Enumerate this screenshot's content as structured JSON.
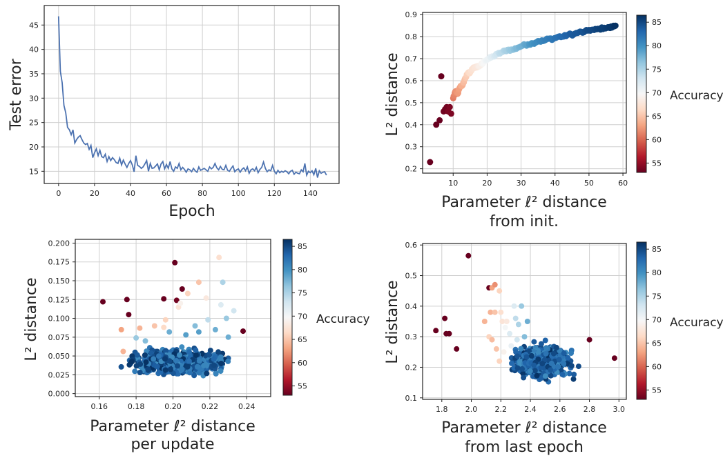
{
  "chart_data": [
    {
      "type": "line",
      "xlabel": "Epoch",
      "ylabel": "Test error",
      "xlim": [
        -8,
        156
      ],
      "ylim": [
        12.5,
        49
      ],
      "xticks": [
        0,
        20,
        40,
        60,
        80,
        100,
        120,
        140
      ],
      "yticks": [
        15,
        20,
        25,
        30,
        35,
        40,
        45
      ],
      "grid": true,
      "color": "#4c72b0",
      "x": [
        0,
        1,
        2,
        3,
        4,
        5,
        6,
        7,
        8,
        9,
        10,
        11,
        12,
        13,
        14,
        15,
        16,
        17,
        18,
        19,
        20,
        21,
        22,
        23,
        24,
        25,
        26,
        27,
        28,
        29,
        30,
        31,
        32,
        33,
        34,
        35,
        36,
        37,
        38,
        39,
        40,
        41,
        42,
        43,
        44,
        45,
        46,
        47,
        48,
        49,
        50,
        51,
        52,
        53,
        54,
        55,
        56,
        57,
        58,
        59,
        60,
        61,
        62,
        63,
        64,
        65,
        66,
        67,
        68,
        69,
        70,
        71,
        72,
        73,
        74,
        75,
        76,
        77,
        78,
        79,
        80,
        81,
        82,
        83,
        84,
        85,
        86,
        87,
        88,
        89,
        90,
        91,
        92,
        93,
        94,
        95,
        96,
        97,
        98,
        99,
        100,
        101,
        102,
        103,
        104,
        105,
        106,
        107,
        108,
        109,
        110,
        111,
        112,
        113,
        114,
        115,
        116,
        117,
        118,
        119,
        120,
        121,
        122,
        123,
        124,
        125,
        126,
        127,
        128,
        129,
        130,
        131,
        132,
        133,
        134,
        135,
        136,
        137,
        138,
        139,
        140,
        141,
        142,
        143,
        144,
        145,
        146,
        147,
        148,
        149
      ],
      "y": [
        46.8,
        35.5,
        33.2,
        28.5,
        27.0,
        24.0,
        23.5,
        22.5,
        23.5,
        20.8,
        21.5,
        22.0,
        22.3,
        21.5,
        20.8,
        20.5,
        20.7,
        19.5,
        20.3,
        17.8,
        18.8,
        19.6,
        18.2,
        19.3,
        18.0,
        17.8,
        18.5,
        17.0,
        18.0,
        17.2,
        17.8,
        17.4,
        16.8,
        16.6,
        17.7,
        16.3,
        17.3,
        16.5,
        15.8,
        16.6,
        17.2,
        16.3,
        14.9,
        18.2,
        16.2,
        16.0,
        15.6,
        15.9,
        16.5,
        17.2,
        15.0,
        16.6,
        15.6,
        15.7,
        16.1,
        16.5,
        15.3,
        16.5,
        17.0,
        15.5,
        16.4,
        15.6,
        17.0,
        15.5,
        15.0,
        15.9,
        15.6,
        16.6,
        15.3,
        15.8,
        15.4,
        14.8,
        15.5,
        15.3,
        14.9,
        15.6,
        15.1,
        14.8,
        15.9,
        15.2,
        15.4,
        15.6,
        15.3,
        15.0,
        15.9,
        15.5,
        15.8,
        16.6,
        15.7,
        15.3,
        16.0,
        15.4,
        15.3,
        16.2,
        15.2,
        15.0,
        15.6,
        16.1,
        14.9,
        15.3,
        15.5,
        14.8,
        15.4,
        15.7,
        15.1,
        15.9,
        14.6,
        15.3,
        15.5,
        15.1,
        15.8,
        14.7,
        15.4,
        15.8,
        16.9,
        15.6,
        14.9,
        15.3,
        15.1,
        16.2,
        15.0,
        14.5,
        15.2,
        14.7,
        15.0,
        14.8,
        15.1,
        14.9,
        14.5,
        15.0,
        15.2,
        14.4,
        14.8,
        14.6,
        14.5,
        15.3,
        14.9,
        16.6,
        14.2,
        15.0,
        14.7,
        15.1,
        14.3,
        15.6,
        13.7,
        15.1,
        14.6,
        14.8,
        14.9,
        14.2
      ]
    },
    {
      "type": "scatter",
      "xlabel": "Parameter ℓ² distance\nfrom init.",
      "ylabel": "L² distance",
      "xlim": [
        1,
        61
      ],
      "ylim": [
        0.18,
        0.91
      ],
      "xticks": [
        10,
        20,
        30,
        40,
        50,
        60
      ],
      "yticks": [
        0.2,
        0.3,
        0.4,
        0.5,
        0.6,
        0.7,
        0.8,
        0.9
      ],
      "grid": true,
      "colorbar": {
        "label": "Accuracy",
        "min": 53,
        "max": 86.5,
        "ticks": [
          55,
          60,
          65,
          70,
          75,
          80,
          85
        ],
        "cmap": "RdBu"
      },
      "points": [
        [
          3.2,
          0.23,
          53
        ],
        [
          5.0,
          0.4,
          53
        ],
        [
          6.0,
          0.42,
          53
        ],
        [
          6.5,
          0.62,
          53
        ],
        [
          7.2,
          0.46,
          53.5
        ],
        [
          7.6,
          0.47,
          53.5
        ],
        [
          8.1,
          0.48,
          53.5
        ],
        [
          8.5,
          0.46,
          54
        ],
        [
          9.0,
          0.48,
          54
        ],
        [
          9.4,
          0.45,
          54
        ],
        [
          10.0,
          0.52,
          61
        ],
        [
          10.6,
          0.55,
          62
        ],
        [
          11.3,
          0.54,
          62.5
        ],
        [
          12.0,
          0.57,
          63
        ],
        [
          12.8,
          0.58,
          64
        ],
        [
          13.5,
          0.61,
          65
        ],
        [
          14.2,
          0.63,
          66
        ],
        [
          15.1,
          0.64,
          67
        ],
        [
          16.0,
          0.66,
          67.5
        ],
        [
          17.0,
          0.66,
          68
        ],
        [
          18.1,
          0.67,
          69
        ],
        [
          19.2,
          0.69,
          70
        ],
        [
          20.5,
          0.7,
          71
        ],
        [
          21.8,
          0.71,
          72
        ],
        [
          23.0,
          0.72,
          73.5
        ],
        [
          24.5,
          0.73,
          74.5
        ],
        [
          26.0,
          0.74,
          75.5
        ],
        [
          27.5,
          0.74,
          76.5
        ],
        [
          29.0,
          0.75,
          77.5
        ],
        [
          30.5,
          0.76,
          78
        ],
        [
          32.0,
          0.765,
          79
        ],
        [
          33.5,
          0.77,
          80
        ],
        [
          35.0,
          0.78,
          80.5
        ],
        [
          36.5,
          0.78,
          81
        ],
        [
          38.0,
          0.79,
          81.5
        ],
        [
          39.5,
          0.79,
          82
        ],
        [
          41.0,
          0.8,
          82.5
        ],
        [
          42.5,
          0.8,
          83
        ],
        [
          44.0,
          0.81,
          83.5
        ],
        [
          45.5,
          0.81,
          84
        ],
        [
          47.0,
          0.82,
          84
        ],
        [
          48.5,
          0.82,
          84.5
        ],
        [
          50.0,
          0.83,
          85
        ],
        [
          51.5,
          0.83,
          85
        ],
        [
          53.0,
          0.835,
          85.5
        ],
        [
          54.5,
          0.84,
          85.5
        ],
        [
          56.0,
          0.84,
          86
        ],
        [
          57.0,
          0.845,
          86
        ],
        [
          57.8,
          0.85,
          86.5
        ]
      ]
    },
    {
      "type": "scatter",
      "xlabel": "Parameter ℓ² distance\nper update",
      "ylabel": "L² distance",
      "xlim": [
        0.147,
        0.253
      ],
      "ylim": [
        -0.004,
        0.205
      ],
      "xticks": [
        0.16,
        0.18,
        0.2,
        0.22,
        0.24
      ],
      "xtick_labels": [
        "0.16",
        "0.18",
        "0.20",
        "0.22",
        "0.24"
      ],
      "yticks": [
        0.0,
        0.025,
        0.05,
        0.075,
        0.1,
        0.125,
        0.15,
        0.175,
        0.2
      ],
      "ytick_labels": [
        "0.000",
        "0.025",
        "0.050",
        "0.075",
        "0.100",
        "0.125",
        "0.150",
        "0.175",
        "0.200"
      ],
      "grid": true,
      "colorbar": {
        "label": "Accuracy",
        "min": 53,
        "max": 86.5,
        "ticks": [
          55,
          60,
          65,
          70,
          75,
          80,
          85
        ],
        "cmap": "RdBu"
      },
      "points": [
        [
          0.162,
          0.122,
          53
        ],
        [
          0.175,
          0.125,
          53
        ],
        [
          0.176,
          0.105,
          53
        ],
        [
          0.201,
          0.174,
          53
        ],
        [
          0.195,
          0.126,
          53
        ],
        [
          0.205,
          0.139,
          53
        ],
        [
          0.202,
          0.124,
          53.5
        ],
        [
          0.238,
          0.083,
          53
        ],
        [
          0.172,
          0.085,
          63
        ],
        [
          0.182,
          0.087,
          64
        ],
        [
          0.196,
          0.098,
          66
        ],
        [
          0.208,
          0.133,
          66
        ],
        [
          0.214,
          0.148,
          65
        ],
        [
          0.225,
          0.181,
          67
        ],
        [
          0.203,
          0.115,
          67.5
        ],
        [
          0.218,
          0.127,
          68
        ],
        [
          0.19,
          0.09,
          65
        ],
        [
          0.195,
          0.088,
          66.5
        ],
        [
          0.173,
          0.056,
          64
        ],
        [
          0.204,
          0.12,
          69
        ],
        [
          0.226,
          0.118,
          72
        ],
        [
          0.233,
          0.11,
          73
        ],
        [
          0.219,
          0.098,
          74
        ],
        [
          0.227,
          0.148,
          75
        ],
        [
          0.229,
          0.1,
          76
        ],
        [
          0.212,
          0.09,
          77
        ],
        [
          0.18,
          0.074,
          76
        ],
        [
          0.185,
          0.07,
          77
        ],
        [
          0.223,
          0.085,
          78
        ],
        [
          0.214,
          0.082,
          79
        ],
        [
          0.198,
          0.082,
          78
        ],
        [
          0.207,
          0.078,
          79
        ],
        [
          0.23,
          0.075,
          78
        ]
      ],
      "dense_cloud": {
        "x_range": [
          0.17,
          0.235
        ],
        "y_range": [
          0.02,
          0.065
        ],
        "accuracy_range": [
          80,
          86.5
        ]
      }
    },
    {
      "type": "scatter",
      "xlabel": "Parameter ℓ² distance\nfrom last epoch",
      "ylabel": "L² distance",
      "xlim": [
        1.67,
        3.05
      ],
      "ylim": [
        0.095,
        0.605
      ],
      "xticks": [
        1.8,
        2.0,
        2.2,
        2.4,
        2.6,
        2.8,
        3.0
      ],
      "xtick_labels": [
        "1.8",
        "2.0",
        "2.2",
        "2.4",
        "2.6",
        "2.8",
        "3.0"
      ],
      "yticks": [
        0.1,
        0.2,
        0.3,
        0.4,
        0.5,
        0.6
      ],
      "ytick_labels": [
        "0.1",
        "0.2",
        "0.3",
        "0.4",
        "0.5",
        "0.6"
      ],
      "grid": true,
      "colorbar": {
        "label": "Accuracy",
        "min": 53,
        "max": 86.5,
        "ticks": [
          55,
          60,
          65,
          70,
          75,
          80,
          85
        ],
        "cmap": "RdBu"
      },
      "points": [
        [
          1.98,
          0.565,
          53
        ],
        [
          1.76,
          0.32,
          53
        ],
        [
          1.82,
          0.36,
          53
        ],
        [
          1.83,
          0.31,
          53
        ],
        [
          1.85,
          0.31,
          53
        ],
        [
          1.9,
          0.26,
          53
        ],
        [
          2.12,
          0.46,
          53
        ],
        [
          2.8,
          0.29,
          53
        ],
        [
          2.97,
          0.23,
          53
        ],
        [
          2.14,
          0.46,
          63
        ],
        [
          2.16,
          0.47,
          62
        ],
        [
          2.19,
          0.45,
          66
        ],
        [
          2.13,
          0.38,
          64
        ],
        [
          2.16,
          0.38,
          65
        ],
        [
          2.2,
          0.38,
          67
        ],
        [
          2.09,
          0.35,
          64
        ],
        [
          2.12,
          0.3,
          66
        ],
        [
          2.14,
          0.29,
          64.5
        ],
        [
          2.17,
          0.26,
          65
        ],
        [
          2.19,
          0.22,
          66
        ],
        [
          2.21,
          0.35,
          67.5
        ],
        [
          2.24,
          0.35,
          68
        ],
        [
          2.29,
          0.4,
          72
        ],
        [
          2.34,
          0.4,
          76
        ],
        [
          2.23,
          0.33,
          70
        ],
        [
          2.26,
          0.31,
          72
        ],
        [
          2.3,
          0.36,
          74
        ],
        [
          2.32,
          0.34,
          75
        ],
        [
          2.36,
          0.3,
          77
        ],
        [
          2.38,
          0.35,
          78
        ],
        [
          2.22,
          0.25,
          69
        ],
        [
          2.27,
          0.27,
          71
        ],
        [
          2.31,
          0.29,
          73
        ]
      ],
      "dense_cloud": {
        "x_range": [
          2.22,
          2.75
        ],
        "y_range": [
          0.15,
          0.29
        ],
        "accuracy_range": [
          80,
          86.5
        ]
      }
    }
  ]
}
